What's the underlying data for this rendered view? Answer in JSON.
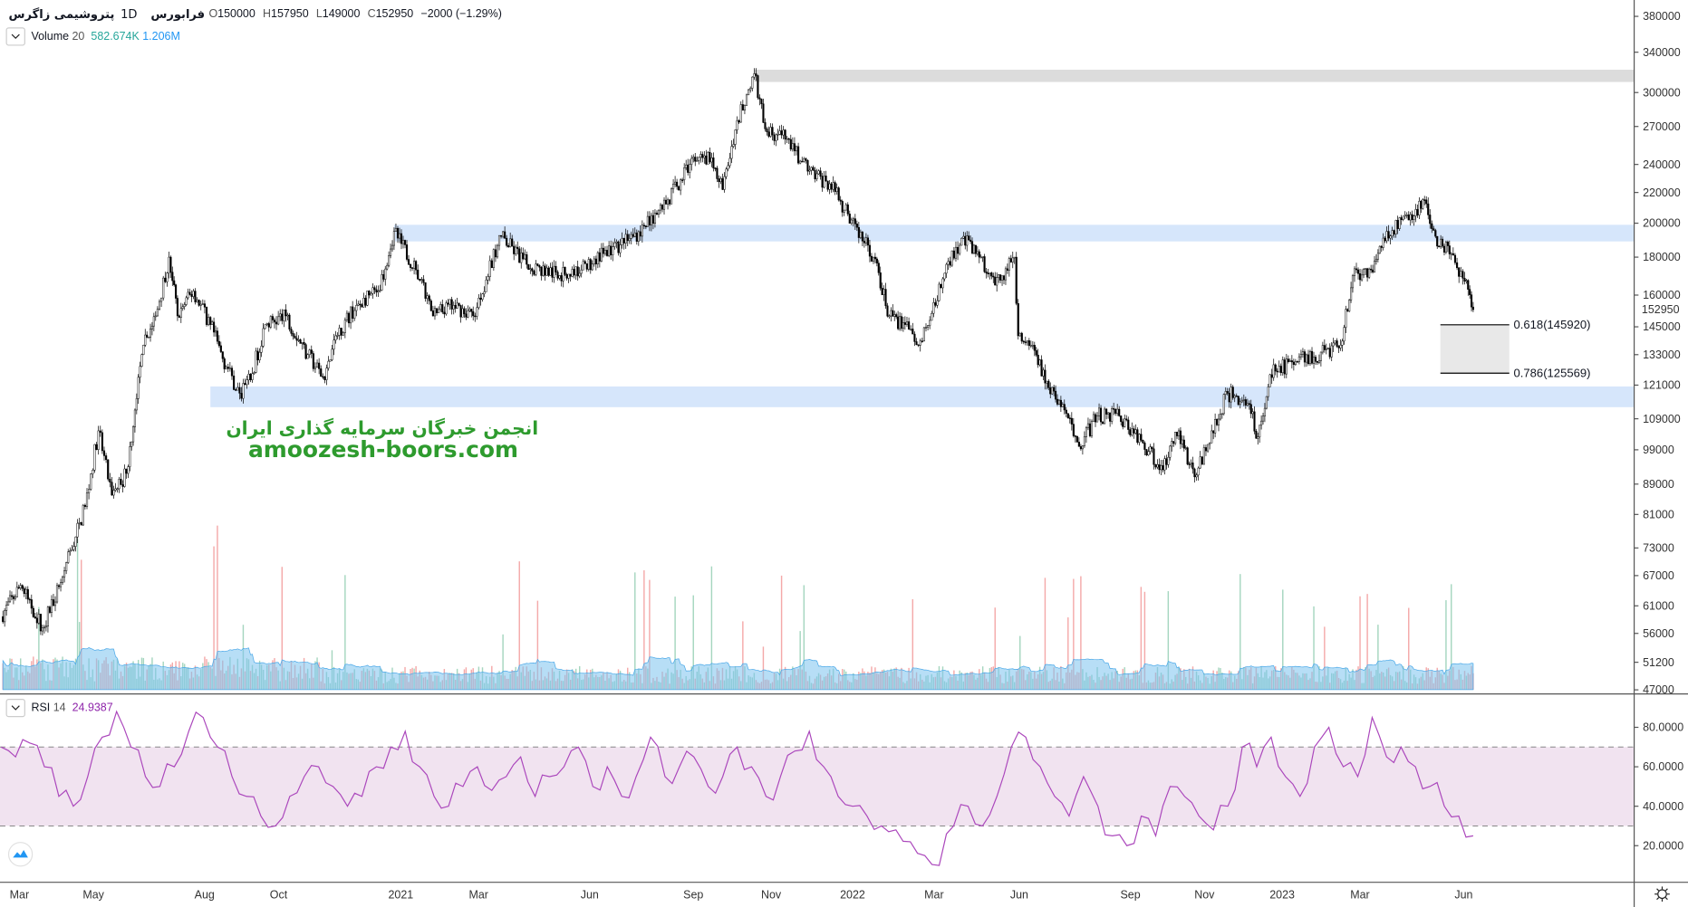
{
  "header": {
    "symbol": "پتروشیمی زاگرس",
    "interval": "1D",
    "exchange": "فرابورس",
    "open_label": "O",
    "open": "150000",
    "high_label": "H",
    "high": "157950",
    "low_label": "L",
    "low": "149000",
    "close_label": "C",
    "close": "152950",
    "change": "−2000 (−1.29%)"
  },
  "volume_legend": {
    "name": "Volume",
    "length": "20",
    "value": "582.674K",
    "ma": "1.206M"
  },
  "rsi_legend": {
    "name": "RSI",
    "length": "14",
    "value": "24.9387"
  },
  "watermark": {
    "line1": "انجمن خبرگان سرمایه گذاری ایران",
    "line2": "amoozesh-boors.com"
  },
  "fib": {
    "upper": "0.618(145920)",
    "lower": "0.786(125569)",
    "upper_value": 145920,
    "lower_value": 125569
  },
  "colors": {
    "up": "#ffffff",
    "down": "#000000",
    "zone_blue": "#d6e6fb",
    "zone_gray": "#dcdcdc",
    "rsi_line": "#ab47bc",
    "rsi_band": "#f1e3f0",
    "vol_up": "#a5d6bf",
    "vol_down": "#f4a9a9",
    "vol_ma": "#7cc3ef",
    "watermark": "#2e9b2e",
    "vol_value": "#26a69a",
    "vol_ma_value": "#2196f3",
    "rsi_value": "#8e24aa"
  },
  "zones": [
    {
      "kind": "gray",
      "from_date": "2021-10-26",
      "low": 310000,
      "high": 322000
    },
    {
      "kind": "blue",
      "from_date": "2021-01-03",
      "low": 189000,
      "high": 199000
    },
    {
      "kind": "blue",
      "from_date": "2020-08-05",
      "low": 113000,
      "high": 120500
    }
  ],
  "chart_data": {
    "type": "candlestick",
    "scale": "log",
    "last_price": "152950",
    "price_ticks": [
      "380000",
      "340000",
      "300000",
      "270000",
      "240000",
      "220000",
      "200000",
      "180000",
      "160000",
      "145000",
      "133000",
      "121000",
      "109000",
      "99000",
      "89000",
      "81000",
      "73000",
      "67000",
      "61000",
      "56000",
      "51200",
      "47000"
    ],
    "rsi_ticks": [
      "80.0000",
      "60.0000",
      "40.0000",
      "20.0000"
    ],
    "rsi_bands": [
      30,
      70
    ],
    "time_ticks": [
      {
        "label": "Mar",
        "m": 0
      },
      {
        "label": "May",
        "m": 2
      },
      {
        "label": "Aug",
        "m": 5
      },
      {
        "label": "Oct",
        "m": 7
      },
      {
        "label": "2021",
        "m": 10.3
      },
      {
        "label": "Mar",
        "m": 12.4
      },
      {
        "label": "Jun",
        "m": 15.4
      },
      {
        "label": "Sep",
        "m": 18.2
      },
      {
        "label": "Nov",
        "m": 20.3
      },
      {
        "label": "2022",
        "m": 22.5
      },
      {
        "label": "Mar",
        "m": 24.7
      },
      {
        "label": "Jun",
        "m": 27
      },
      {
        "label": "Sep",
        "m": 30
      },
      {
        "label": "Nov",
        "m": 32
      },
      {
        "label": "2023",
        "m": 34.1
      },
      {
        "label": "Mar",
        "m": 36.2
      },
      {
        "label": "Jun",
        "m": 39
      }
    ],
    "close_keypoints": [
      [
        "2020-02-15",
        59000
      ],
      [
        "2020-03-02",
        65000
      ],
      [
        "2020-03-20",
        57000
      ],
      [
        "2020-04-07",
        68000
      ],
      [
        "2020-04-24",
        83000
      ],
      [
        "2020-05-05",
        105000
      ],
      [
        "2020-05-16",
        86000
      ],
      [
        "2020-05-28",
        92000
      ],
      [
        "2020-06-04",
        112000
      ],
      [
        "2020-06-11",
        137000
      ],
      [
        "2020-06-21",
        150000
      ],
      [
        "2020-07-02",
        180000
      ],
      [
        "2020-07-09",
        150000
      ],
      [
        "2020-07-22",
        162000
      ],
      [
        "2020-08-05",
        146000
      ],
      [
        "2020-08-18",
        128000
      ],
      [
        "2020-08-29",
        118000
      ],
      [
        "2020-09-07",
        123000
      ],
      [
        "2020-09-19",
        146000
      ],
      [
        "2020-10-06",
        150000
      ],
      [
        "2020-10-24",
        133000
      ],
      [
        "2020-11-07",
        123000
      ],
      [
        "2020-11-16",
        141000
      ],
      [
        "2020-12-03",
        155000
      ],
      [
        "2020-12-21",
        162000
      ],
      [
        "2021-01-03",
        195000
      ],
      [
        "2021-01-21",
        173000
      ],
      [
        "2021-02-04",
        150000
      ],
      [
        "2021-02-21",
        155000
      ],
      [
        "2021-03-09",
        150000
      ],
      [
        "2021-04-01",
        192000
      ],
      [
        "2021-04-22",
        176000
      ],
      [
        "2021-05-19",
        170000
      ],
      [
        "2021-06-06",
        173000
      ],
      [
        "2021-06-24",
        182000
      ],
      [
        "2021-07-11",
        188000
      ],
      [
        "2021-07-29",
        198000
      ],
      [
        "2021-08-16",
        215000
      ],
      [
        "2021-09-03",
        240000
      ],
      [
        "2021-09-21",
        245000
      ],
      [
        "2021-09-30",
        222000
      ],
      [
        "2021-10-12",
        275000
      ],
      [
        "2021-10-26",
        318000
      ],
      [
        "2021-11-04",
        268000
      ],
      [
        "2021-11-22",
        260000
      ],
      [
        "2021-12-09",
        235000
      ],
      [
        "2021-12-27",
        226000
      ],
      [
        "2022-01-14",
        202000
      ],
      [
        "2022-02-01",
        180000
      ],
      [
        "2022-02-14",
        150000
      ],
      [
        "2022-02-27",
        146000
      ],
      [
        "2022-03-10",
        137000
      ],
      [
        "2022-03-24",
        155000
      ],
      [
        "2022-04-02",
        176000
      ],
      [
        "2022-04-16",
        192000
      ],
      [
        "2022-04-29",
        180000
      ],
      [
        "2022-05-12",
        165000
      ],
      [
        "2022-05-28",
        180000
      ],
      [
        "2022-05-31",
        141000
      ],
      [
        "2022-06-12",
        137000
      ],
      [
        "2022-06-25",
        120000
      ],
      [
        "2022-07-08",
        112000
      ],
      [
        "2022-07-20",
        100000
      ],
      [
        "2022-08-04",
        110000
      ],
      [
        "2022-08-22",
        110000
      ],
      [
        "2022-09-09",
        102000
      ],
      [
        "2022-09-27",
        93000
      ],
      [
        "2022-10-10",
        105000
      ],
      [
        "2022-10-23",
        91000
      ],
      [
        "2022-11-06",
        105000
      ],
      [
        "2022-11-19",
        118000
      ],
      [
        "2022-12-07",
        114000
      ],
      [
        "2022-12-14",
        103000
      ],
      [
        "2022-12-24",
        125000
      ],
      [
        "2023-01-11",
        130000
      ],
      [
        "2023-01-29",
        132000
      ],
      [
        "2023-02-20",
        137000
      ],
      [
        "2023-03-02",
        170000
      ],
      [
        "2023-03-17",
        173000
      ],
      [
        "2023-03-30",
        195000
      ],
      [
        "2023-04-17",
        202000
      ],
      [
        "2023-04-30",
        215000
      ],
      [
        "2023-05-09",
        192000
      ],
      [
        "2023-05-22",
        182000
      ],
      [
        "2023-06-02",
        167000
      ],
      [
        "2023-06-09",
        152950
      ]
    ],
    "rsi_values": [
      70,
      65,
      72,
      60,
      45,
      40,
      55,
      75,
      88,
      70,
      55,
      50,
      60,
      78,
      85,
      70,
      55,
      45,
      35,
      30,
      45,
      55,
      60,
      50,
      40,
      45,
      60,
      70,
      78,
      60,
      45,
      40,
      50,
      60,
      48,
      55,
      65,
      45,
      55,
      60,
      70,
      50,
      60,
      45,
      55,
      75,
      55,
      60,
      65,
      50,
      55,
      70,
      60,
      45,
      55,
      68,
      78,
      60,
      45,
      40,
      35,
      30,
      28,
      22,
      15,
      10,
      30,
      40,
      30,
      45,
      70,
      75,
      60,
      45,
      35,
      55,
      40,
      25,
      20,
      35,
      25,
      50,
      45,
      35,
      28,
      40,
      70,
      60,
      75,
      55,
      45,
      70,
      80,
      60,
      55,
      85,
      65,
      70,
      60,
      50,
      40,
      35,
      25
    ]
  }
}
